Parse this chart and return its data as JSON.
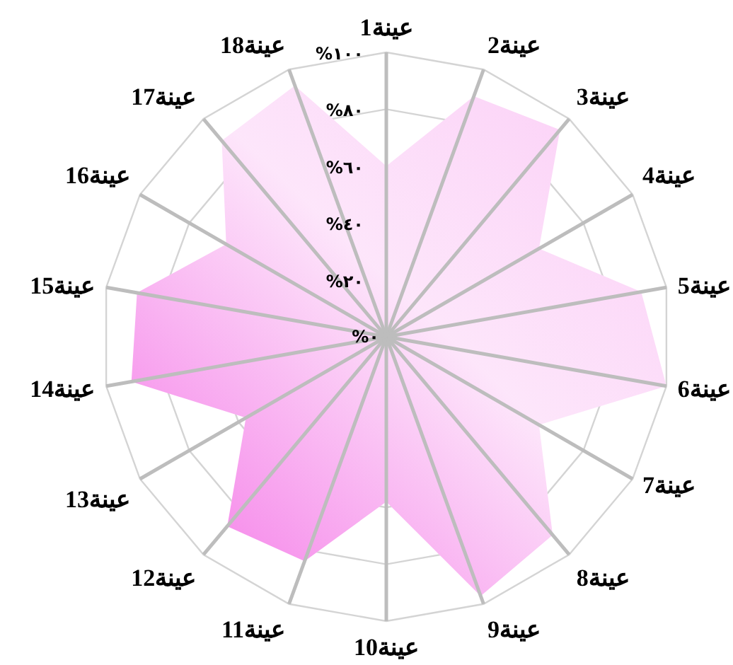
{
  "chart_data": {
    "type": "radar",
    "categories": [
      "عينة1",
      "عينة2",
      "عينة3",
      "عينة4",
      "عينة5",
      "عينة6",
      "عينة7",
      "عينة8",
      "عينة9",
      "عينة10",
      "عينة11",
      "عينة12",
      "عينة13",
      "عينة14",
      "عينة15",
      "عينة16",
      "عينة17",
      "عينة18"
    ],
    "series": [
      {
        "color": "#f472e6",
        "values": [
          60,
          90,
          95,
          62,
          91,
          100,
          62,
          91,
          97,
          58,
          84,
          87,
          57,
          91,
          89,
          65,
          90,
          94
        ]
      }
    ],
    "ylim": [
      0,
      100
    ],
    "yticks": [
      {
        "value": 0,
        "label": "%٠"
      },
      {
        "value": 20,
        "label": "%٢٠"
      },
      {
        "value": 40,
        "label": "%٤٠"
      },
      {
        "value": 60,
        "label": "%٦٠"
      },
      {
        "value": 80,
        "label": "%٨٠"
      },
      {
        "value": 100,
        "label": "%١٠٠"
      }
    ],
    "grid": true,
    "marker": "none"
  }
}
